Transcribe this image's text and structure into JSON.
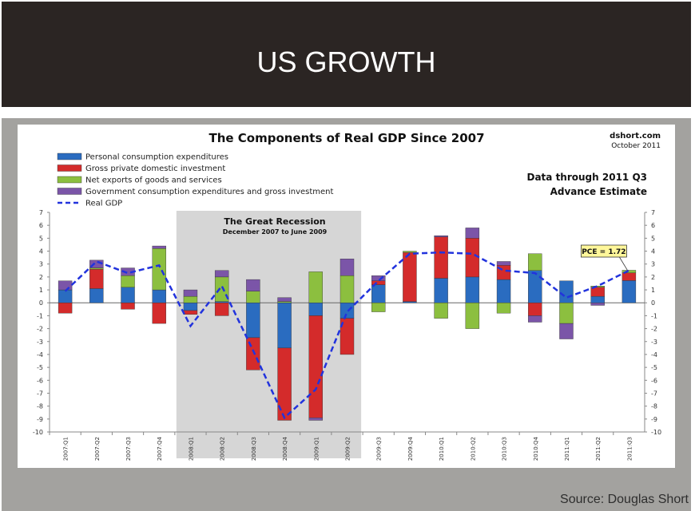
{
  "slide": {
    "title": "US GROWTH",
    "source": "Source: Douglas Short"
  },
  "chart_data": {
    "type": "bar",
    "stacked": true,
    "title": "The Components of Real GDP Since 2007",
    "brand": "dshort.com",
    "date": "October 2011",
    "note_line1": "Data through 2011 Q3",
    "note_line2": "Advance Estimate",
    "shaded_region": {
      "title": "The Great Recession",
      "subtitle": "December 2007  to June 2009",
      "from": "2008:Q1",
      "to": "2009:Q2"
    },
    "callout": {
      "label": "PCE = 1.72",
      "category": "2011:Q3"
    },
    "ylim": [
      -10,
      7
    ],
    "yticks": [
      -10,
      -9,
      -8,
      -7,
      -6,
      -5,
      -4,
      -3,
      -2,
      -1,
      0,
      1,
      2,
      3,
      4,
      5,
      6,
      7
    ],
    "grid": false,
    "legend_position": "top-left",
    "categories": [
      "2007:Q1",
      "2007:Q2",
      "2007:Q3",
      "2007:Q4",
      "2008:Q1",
      "2008:Q2",
      "2008:Q3",
      "2008:Q4",
      "2009:Q1",
      "2009:Q2",
      "2009:Q3",
      "2009:Q4",
      "2010:Q1",
      "2010:Q2",
      "2010:Q3",
      "2010:Q4",
      "2011:Q1",
      "2011:Q2",
      "2011:Q3"
    ],
    "series": [
      {
        "name": "Personal consumption expenditures",
        "color": "#2a6cc0",
        "values": [
          1.0,
          1.1,
          1.2,
          1.0,
          -0.6,
          0.1,
          -2.7,
          -3.5,
          -1.0,
          -1.2,
          1.4,
          0.1,
          1.9,
          2.0,
          1.8,
          2.5,
          1.7,
          0.5,
          1.72
        ]
      },
      {
        "name": "Gross private domestic investment",
        "color": "#d42b2b",
        "values": [
          -0.8,
          1.5,
          -0.5,
          -1.6,
          -0.3,
          -1.0,
          -2.5,
          -5.6,
          -7.9,
          -2.8,
          0.3,
          3.8,
          3.2,
          3.0,
          1.1,
          -1.0,
          0.0,
          0.7,
          0.6
        ]
      },
      {
        "name": "Net exports of goods and services",
        "color": "#8cbf3f",
        "values": [
          0.0,
          0.1,
          0.9,
          3.2,
          0.5,
          1.9,
          0.9,
          0.1,
          2.4,
          2.1,
          -0.7,
          0.1,
          -1.2,
          -2.0,
          -0.8,
          1.3,
          -1.6,
          0.1,
          0.2
        ]
      },
      {
        "name": "Government consumption expenditures and gross investment",
        "color": "#7b55a8",
        "values": [
          0.7,
          0.6,
          0.6,
          0.2,
          0.5,
          0.5,
          0.9,
          0.3,
          -0.2,
          1.3,
          0.4,
          0.0,
          0.1,
          0.8,
          0.3,
          -0.5,
          -1.2,
          -0.2,
          0.0
        ]
      },
      {
        "name": "Real GDP",
        "color": "#2233dd",
        "type": "line",
        "dashed": true,
        "values": [
          0.9,
          3.2,
          2.3,
          2.9,
          -1.8,
          1.3,
          -3.7,
          -8.9,
          -6.7,
          -0.7,
          1.7,
          3.8,
          3.9,
          3.8,
          2.5,
          2.3,
          0.4,
          1.3,
          2.5
        ]
      }
    ]
  }
}
